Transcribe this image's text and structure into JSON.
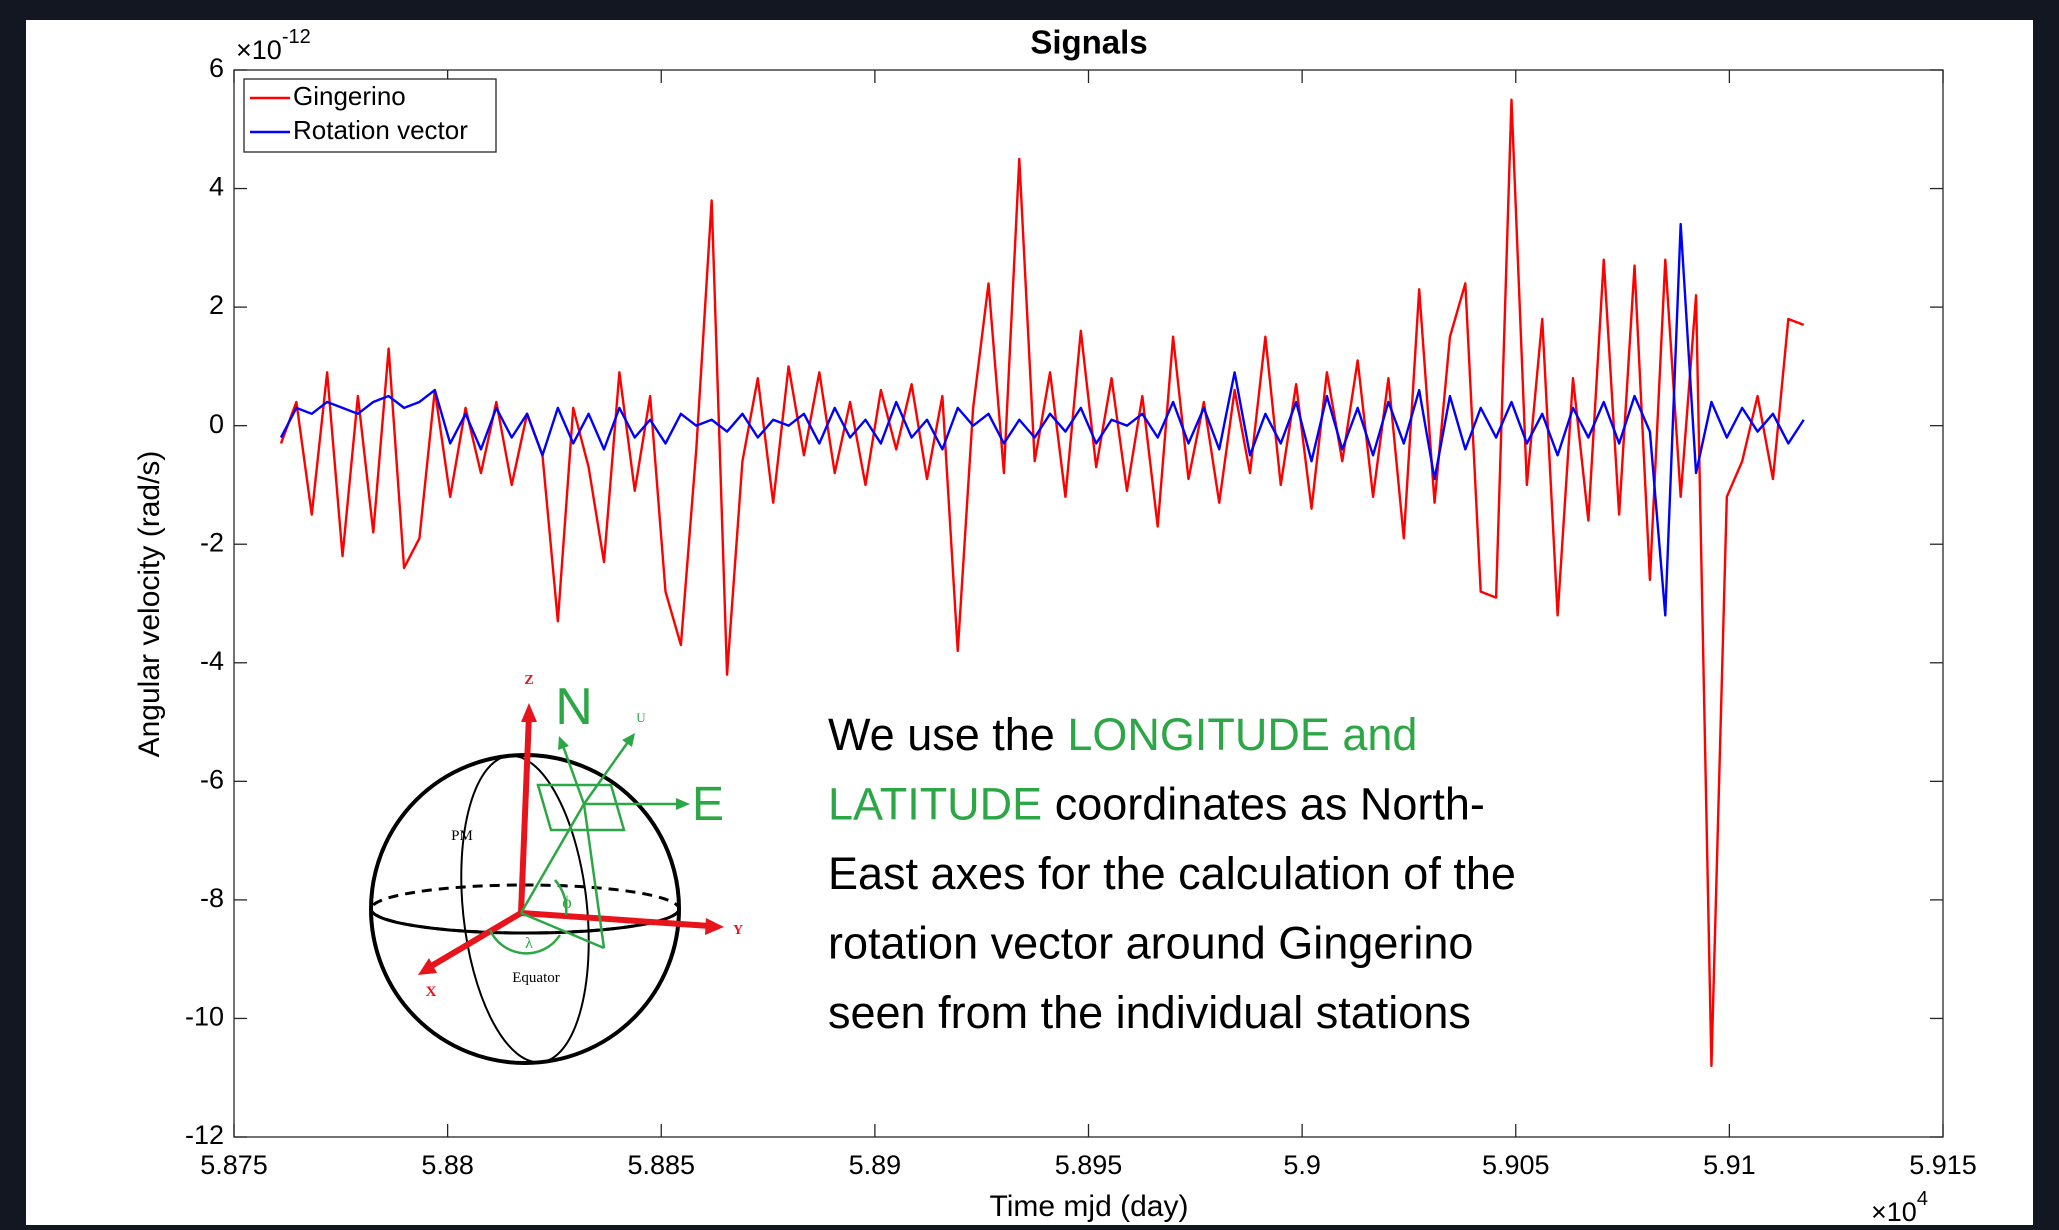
{
  "chart_data": {
    "type": "line",
    "title": "Signals",
    "x_label": "Time mjd (day)",
    "y_label": "Angular velocity (rad/s)",
    "x_multiplier": {
      "base": "×10",
      "exponent": "4"
    },
    "y_multiplier": {
      "base": "×10",
      "exponent": "-12"
    },
    "xlim": [
      5.875,
      5.915
    ],
    "xticks": [
      5.875,
      5.88,
      5.885,
      5.89,
      5.895,
      5.9,
      5.905,
      5.91,
      5.915
    ],
    "ylim": [
      -12,
      6
    ],
    "yticks": [
      -12,
      -10,
      -8,
      -6,
      -4,
      -2,
      0,
      2,
      4,
      6
    ],
    "grid": false,
    "legend_position": "top-left",
    "x": [
      5.8761,
      5.87646,
      5.87682,
      5.87718,
      5.87754,
      5.8779,
      5.87826,
      5.87862,
      5.87898,
      5.87934,
      5.8797,
      5.88006,
      5.88042,
      5.88078,
      5.88114,
      5.8815,
      5.88186,
      5.88222,
      5.88258,
      5.88294,
      5.8833,
      5.88366,
      5.88402,
      5.88438,
      5.88474,
      5.8851,
      5.88546,
      5.88582,
      5.88618,
      5.88654,
      5.8869,
      5.88726,
      5.88762,
      5.88798,
      5.88834,
      5.8887,
      5.88906,
      5.88942,
      5.88978,
      5.89014,
      5.8905,
      5.89086,
      5.89122,
      5.89158,
      5.89194,
      5.8923,
      5.89266,
      5.89302,
      5.89338,
      5.89374,
      5.8941,
      5.89446,
      5.89482,
      5.89518,
      5.89554,
      5.8959,
      5.89626,
      5.89662,
      5.89698,
      5.89734,
      5.8977,
      5.89806,
      5.89842,
      5.89878,
      5.89914,
      5.8995,
      5.89986,
      5.90022,
      5.90058,
      5.90094,
      5.9013,
      5.90166,
      5.90202,
      5.90238,
      5.90274,
      5.9031,
      5.90346,
      5.90382,
      5.90418,
      5.90454,
      5.9049,
      5.90526,
      5.90562,
      5.90598,
      5.90634,
      5.9067,
      5.90706,
      5.90742,
      5.90778,
      5.90814,
      5.9085,
      5.90886,
      5.90922,
      5.90958,
      5.90994,
      5.9103,
      5.91066,
      5.91102,
      5.91138,
      5.91174
    ],
    "series": [
      {
        "name": "Gingerino",
        "color": "#ff0000",
        "values": [
          -0.3,
          0.4,
          -1.5,
          0.9,
          -2.2,
          0.5,
          -1.8,
          1.3,
          -2.4,
          -1.9,
          0.6,
          -1.2,
          0.3,
          -0.8,
          0.4,
          -1.0,
          0.2,
          -0.5,
          -3.3,
          0.3,
          -0.7,
          -2.3,
          0.9,
          -1.1,
          0.5,
          -2.8,
          -3.7,
          -0.4,
          3.8,
          -4.2,
          -0.6,
          0.8,
          -1.3,
          1.0,
          -0.5,
          0.9,
          -0.8,
          0.4,
          -1.0,
          0.6,
          -0.4,
          0.7,
          -0.9,
          0.5,
          -3.8,
          0.3,
          2.4,
          -0.8,
          4.5,
          -0.6,
          0.9,
          -1.2,
          1.6,
          -0.7,
          0.8,
          -1.1,
          0.5,
          -1.7,
          1.5,
          -0.9,
          0.4,
          -1.3,
          0.6,
          -0.8,
          1.5,
          -1.0,
          0.7,
          -1.4,
          0.9,
          -0.6,
          1.1,
          -1.2,
          0.8,
          -1.9,
          2.3,
          -1.3,
          1.5,
          2.4,
          -2.8,
          -2.9,
          5.5,
          -1.0,
          1.8,
          -3.2,
          0.8,
          -1.6,
          2.8,
          -1.5,
          2.7,
          -2.6,
          2.8,
          -1.2,
          2.2,
          -10.8,
          -1.2,
          -0.6,
          0.5,
          -0.9,
          1.8,
          1.7
        ]
      },
      {
        "name": "Rotation vector",
        "color": "#0000ff",
        "values": [
          -0.2,
          0.3,
          0.2,
          0.4,
          0.3,
          0.2,
          0.4,
          0.5,
          0.3,
          0.4,
          0.6,
          -0.3,
          0.2,
          -0.4,
          0.3,
          -0.2,
          0.2,
          -0.5,
          0.3,
          -0.3,
          0.2,
          -0.4,
          0.3,
          -0.2,
          0.1,
          -0.3,
          0.2,
          0.0,
          0.1,
          -0.1,
          0.2,
          -0.2,
          0.1,
          0.0,
          0.2,
          -0.3,
          0.3,
          -0.2,
          0.1,
          -0.3,
          0.4,
          -0.2,
          0.1,
          -0.4,
          0.3,
          0.0,
          0.2,
          -0.3,
          0.1,
          -0.2,
          0.2,
          -0.1,
          0.3,
          -0.3,
          0.1,
          0.0,
          0.2,
          -0.2,
          0.4,
          -0.3,
          0.3,
          -0.4,
          0.9,
          -0.5,
          0.2,
          -0.3,
          0.4,
          -0.6,
          0.5,
          -0.4,
          0.3,
          -0.5,
          0.4,
          -0.3,
          0.6,
          -0.9,
          0.5,
          -0.4,
          0.3,
          -0.2,
          0.4,
          -0.3,
          0.2,
          -0.5,
          0.3,
          -0.2,
          0.4,
          -0.3,
          0.5,
          -0.1,
          -3.2,
          3.4,
          -0.8,
          0.4,
          -0.2,
          0.3,
          -0.1,
          0.2,
          -0.3,
          0.1
        ]
      }
    ],
    "annotation": {
      "lines": [
        [
          {
            "text": "We use the ",
            "color": "#000000"
          },
          {
            "text": "LONGITUDE and",
            "color": "#2ca745"
          }
        ],
        [
          {
            "text": "LATITUDE",
            "color": "#2ca745"
          },
          {
            "text": " coordinates as North-",
            "color": "#000000"
          }
        ],
        [
          {
            "text": "East axes for the calculation of the",
            "color": "#000000"
          }
        ],
        [
          {
            "text": "rotation vector around Gingerino",
            "color": "#000000"
          }
        ],
        [
          {
            "text": "seen from the individual stations",
            "color": "#000000"
          }
        ]
      ]
    }
  },
  "inset_diagram": {
    "labels": {
      "z": "Z",
      "n": "N",
      "u": "U",
      "e": "E",
      "pm": "PM",
      "y": "Y",
      "x": "X",
      "equator": "Equator",
      "phi": "ϕ",
      "lambda": "λ"
    }
  }
}
